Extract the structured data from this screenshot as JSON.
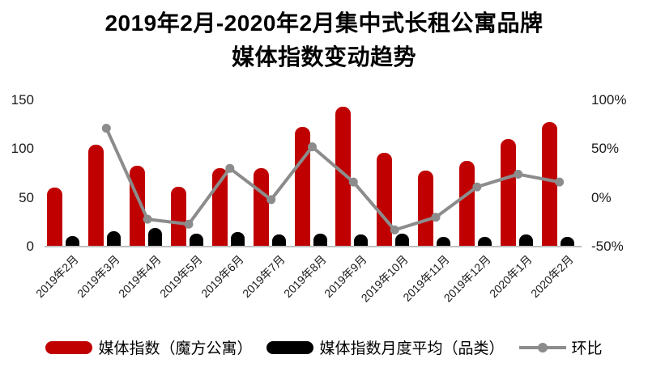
{
  "title": {
    "line1": "2019年2月-2020年2月集中式长租公寓品牌",
    "line2": "媒体指数变动趋势"
  },
  "colors": {
    "bar_primary": "#c00000",
    "bar_secondary": "#000000",
    "trend_line": "#8c8c8c",
    "axis_line": "#bfbfbf",
    "text": "#1a1a1a"
  },
  "chart_data": {
    "type": "combo-bar-line",
    "title": "2019年2月-2020年2月集中式长租公寓品牌媒体指数变动趋势",
    "categories": [
      "2019年2月",
      "2019年3月",
      "2019年4月",
      "2019年5月",
      "2019年6月",
      "2019年7月",
      "2019年8月",
      "2019年9月",
      "2019年10月",
      "2019年11月",
      "2019年12月",
      "2020年1月",
      "2020年2月"
    ],
    "series": [
      {
        "name": "媒体指数（魔方公寓）",
        "type": "bar",
        "axis": "left",
        "color": "#c00000",
        "values": [
          60,
          104,
          83,
          61,
          80,
          80,
          122,
          143,
          96,
          78,
          88,
          110,
          127
        ]
      },
      {
        "name": "媒体指数月度平均（品类）",
        "type": "bar",
        "axis": "left",
        "color": "#000000",
        "values": [
          11,
          16,
          19,
          13,
          15,
          12,
          13,
          12,
          13,
          10,
          10,
          12,
          10
        ]
      },
      {
        "name": "环比",
        "type": "line",
        "axis": "right",
        "color": "#8c8c8c",
        "unit": "%",
        "values": [
          null,
          71,
          -22,
          -27,
          30,
          -2,
          52,
          16,
          -33,
          -20,
          11,
          24,
          16
        ]
      }
    ],
    "left_axis": {
      "min": 0,
      "max": 150,
      "tick_values": [
        0,
        50,
        100,
        150
      ],
      "tick_labels": [
        "0",
        "50",
        "100",
        "150"
      ]
    },
    "right_axis": {
      "min": -50,
      "max": 100,
      "tick_values": [
        -50,
        0,
        50,
        100
      ],
      "tick_labels": [
        "-50%",
        "0%",
        "50%",
        "100%"
      ]
    },
    "grid": false,
    "legend_position": "bottom"
  }
}
